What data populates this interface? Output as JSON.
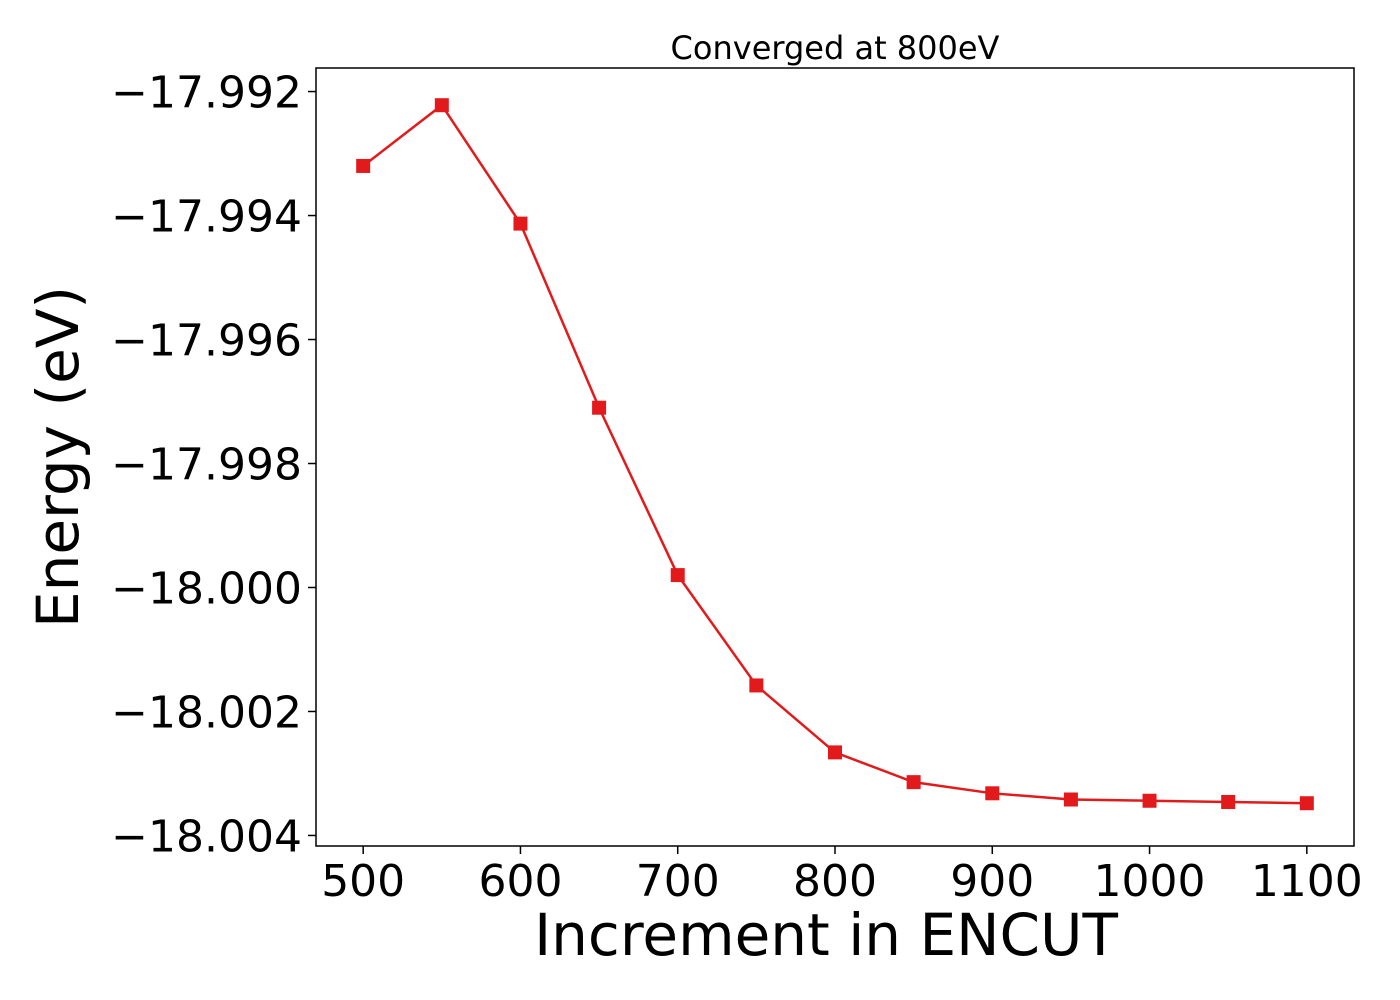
{
  "chart_data": {
    "type": "line",
    "title": "Converged at 800eV",
    "xlabel": "Increment in ENCUT",
    "ylabel": "Energy (eV)",
    "x": [
      500,
      550,
      600,
      650,
      700,
      750,
      800,
      850,
      900,
      950,
      1000,
      1050,
      1100
    ],
    "series": [
      {
        "values": [
          -17.9932,
          -17.99222,
          -17.99413,
          -17.9971,
          -17.9998,
          -18.00158,
          -18.00266,
          -18.00314,
          -18.00332,
          -18.00342,
          -18.00344,
          -18.00346,
          -18.00348
        ],
        "color": "#e31a1c",
        "marker": "square"
      }
    ],
    "xticks": [
      500,
      600,
      700,
      800,
      900,
      1000,
      1100
    ],
    "yticks": [
      -17.992,
      -17.994,
      -17.996,
      -17.998,
      -18.0,
      -18.002,
      -18.004
    ],
    "ytick_labels": [
      "−17.992",
      "−17.994",
      "−17.996",
      "−17.998",
      "−18.000",
      "−18.002",
      "−18.004"
    ],
    "xlim": [
      470,
      1130
    ],
    "ylim": [
      -18.00417,
      -17.99162
    ],
    "grid": false,
    "legend": "none"
  }
}
